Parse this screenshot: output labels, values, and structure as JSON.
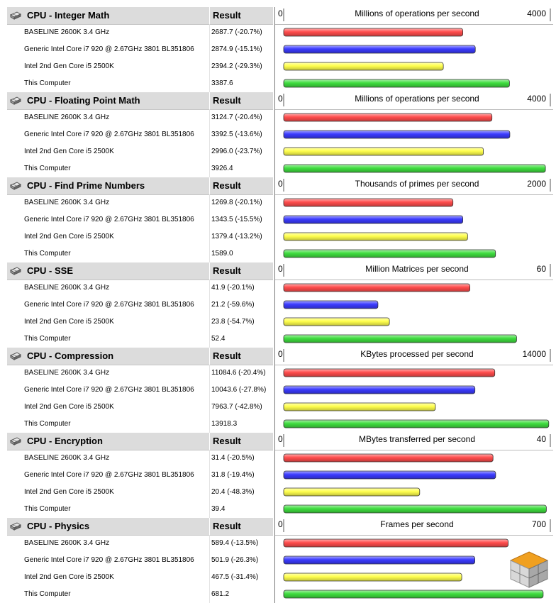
{
  "labels": {
    "result": "Result"
  },
  "colors": {
    "baseline": "#ff4c4c",
    "i7_920": "#3b3bff",
    "i5_2500k": "#ffff4d",
    "this_computer": "#3fdd3f"
  },
  "chart_data": [
    {
      "type": "bar",
      "title": "CPU - Integer Math",
      "xlabel": "Millions of operations per second",
      "xlim": [
        0,
        4000
      ],
      "categories": [
        "BASELINE 2600K 3.4 GHz",
        "Generic Intel Core i7 920 @ 2.67GHz 3801 BL351806",
        "Intel 2nd Gen Core i5 2500K",
        "This Computer"
      ],
      "values": [
        2687.7,
        2874.9,
        2394.2,
        3387.6
      ],
      "result_labels": [
        "2687.7 (-20.7%)",
        "2874.9 (-15.1%)",
        "2394.2 (-29.3%)",
        "3387.6"
      ]
    },
    {
      "type": "bar",
      "title": "CPU - Floating Point Math",
      "xlabel": "Millions of operations per second",
      "xlim": [
        0,
        4000
      ],
      "categories": [
        "BASELINE 2600K 3.4 GHz",
        "Generic Intel Core i7 920 @ 2.67GHz 3801 BL351806",
        "Intel 2nd Gen Core i5 2500K",
        "This Computer"
      ],
      "values": [
        3124.7,
        3392.5,
        2996.0,
        3926.4
      ],
      "result_labels": [
        "3124.7 (-20.4%)",
        "3392.5 (-13.6%)",
        "2996.0 (-23.7%)",
        "3926.4"
      ]
    },
    {
      "type": "bar",
      "title": "CPU - Find Prime Numbers",
      "xlabel": "Thousands of primes per second",
      "xlim": [
        0,
        2000
      ],
      "categories": [
        "BASELINE 2600K 3.4 GHz",
        "Generic Intel Core i7 920 @ 2.67GHz 3801 BL351806",
        "Intel 2nd Gen Core i5 2500K",
        "This Computer"
      ],
      "values": [
        1269.8,
        1343.5,
        1379.4,
        1589.0
      ],
      "result_labels": [
        "1269.8 (-20.1%)",
        "1343.5 (-15.5%)",
        "1379.4 (-13.2%)",
        "1589.0"
      ]
    },
    {
      "type": "bar",
      "title": "CPU - SSE",
      "xlabel": "Million Matrices per second",
      "xlim": [
        0,
        60
      ],
      "categories": [
        "BASELINE 2600K 3.4 GHz",
        "Generic Intel Core i7 920 @ 2.67GHz 3801 BL351806",
        "Intel 2nd Gen Core i5 2500K",
        "This Computer"
      ],
      "values": [
        41.9,
        21.2,
        23.8,
        52.4
      ],
      "result_labels": [
        "41.9 (-20.1%)",
        "21.2 (-59.6%)",
        "23.8 (-54.7%)",
        "52.4"
      ]
    },
    {
      "type": "bar",
      "title": "CPU - Compression",
      "xlabel": "KBytes processed per second",
      "xlim": [
        0,
        14000
      ],
      "categories": [
        "BASELINE 2600K 3.4 GHz",
        "Generic Intel Core i7 920 @ 2.67GHz 3801 BL351806",
        "Intel 2nd Gen Core i5 2500K",
        "This Computer"
      ],
      "values": [
        11084.6,
        10043.6,
        7963.7,
        13918.3
      ],
      "result_labels": [
        "11084.6 (-20.4%)",
        "10043.6 (-27.8%)",
        "7963.7 (-42.8%)",
        "13918.3"
      ]
    },
    {
      "type": "bar",
      "title": "CPU - Encryption",
      "xlabel": "MBytes transferred per second",
      "xlim": [
        0,
        40
      ],
      "categories": [
        "BASELINE 2600K 3.4 GHz",
        "Generic Intel Core i7 920 @ 2.67GHz 3801 BL351806",
        "Intel 2nd Gen Core i5 2500K",
        "This Computer"
      ],
      "values": [
        31.4,
        31.8,
        20.4,
        39.4
      ],
      "result_labels": [
        "31.4 (-20.5%)",
        "31.8 (-19.4%)",
        "20.4 (-48.3%)",
        "39.4"
      ]
    },
    {
      "type": "bar",
      "title": "CPU - Physics",
      "xlabel": "Frames per second",
      "xlim": [
        0,
        700
      ],
      "categories": [
        "BASELINE 2600K 3.4 GHz",
        "Generic Intel Core i7 920 @ 2.67GHz 3801 BL351806",
        "Intel 2nd Gen Core i5 2500K",
        "This Computer"
      ],
      "values": [
        589.4,
        501.9,
        467.5,
        681.2
      ],
      "result_labels": [
        "589.4 (-13.5%)",
        "501.9 (-26.3%)",
        "467.5 (-31.4%)",
        "681.2"
      ]
    }
  ]
}
